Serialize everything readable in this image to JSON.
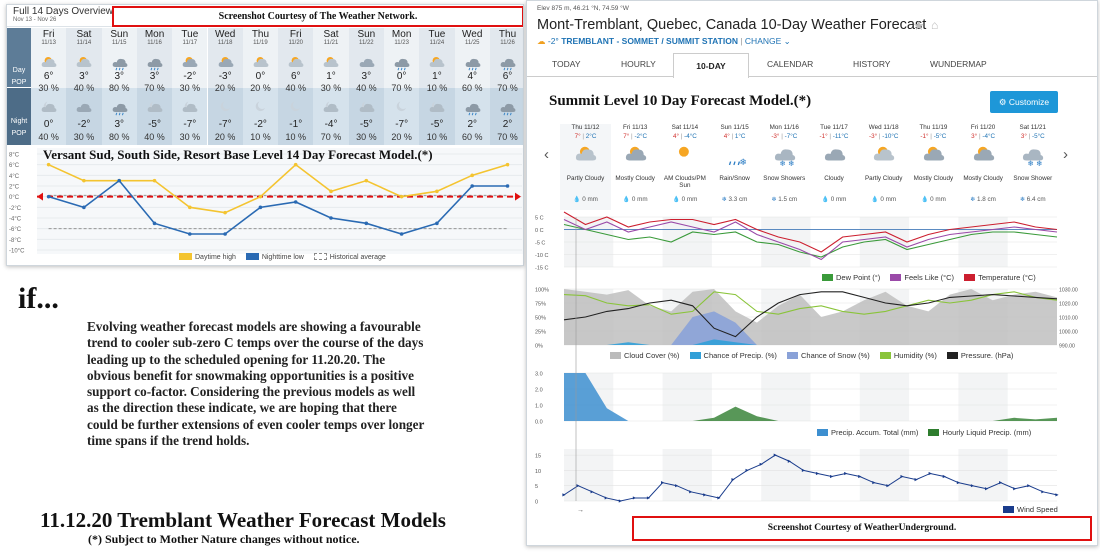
{
  "weather_network": {
    "title": "Full 14 Days Overview",
    "date_range": "Nov 13 - Nov 26",
    "courtesy": "Screenshot Courtesy of The Weather Network.",
    "heading": "Versant Sud, South Side, Resort Base Level 14 Day Forecast Model.(*)",
    "row_labels": {
      "day": "Day",
      "pop": "POP",
      "night": "Night"
    },
    "days": [
      {
        "name": "Fri",
        "date": "11/13",
        "day_temp": "6°",
        "day_pop": "30 %",
        "night_temp": "0°",
        "night_pop": "40 %"
      },
      {
        "name": "Sat",
        "date": "11/14",
        "day_temp": "3°",
        "day_pop": "40 %",
        "night_temp": "-2°",
        "night_pop": "30 %"
      },
      {
        "name": "Sun",
        "date": "11/15",
        "day_temp": "3°",
        "day_pop": "80 %",
        "night_temp": "3°",
        "night_pop": "80 %"
      },
      {
        "name": "Mon",
        "date": "11/16",
        "day_temp": "3°",
        "day_pop": "70 %",
        "night_temp": "-5°",
        "night_pop": "40 %"
      },
      {
        "name": "Tue",
        "date": "11/17",
        "day_temp": "-2°",
        "day_pop": "30 %",
        "night_temp": "-7°",
        "night_pop": "30 %"
      },
      {
        "name": "Wed",
        "date": "11/18",
        "day_temp": "-3°",
        "day_pop": "20 %",
        "night_temp": "-7°",
        "night_pop": "20 %"
      },
      {
        "name": "Thu",
        "date": "11/19",
        "day_temp": "0°",
        "day_pop": "20 %",
        "night_temp": "-2°",
        "night_pop": "10 %"
      },
      {
        "name": "Fri",
        "date": "11/20",
        "day_temp": "6°",
        "day_pop": "40 %",
        "night_temp": "-1°",
        "night_pop": "10 %"
      },
      {
        "name": "Sat",
        "date": "11/21",
        "day_temp": "1°",
        "day_pop": "30 %",
        "night_temp": "-4°",
        "night_pop": "70 %"
      },
      {
        "name": "Sun",
        "date": "11/22",
        "day_temp": "3°",
        "day_pop": "40 %",
        "night_temp": "-5°",
        "night_pop": "30 %"
      },
      {
        "name": "Mon",
        "date": "11/23",
        "day_temp": "0°",
        "day_pop": "70 %",
        "night_temp": "-7°",
        "night_pop": "20 %"
      },
      {
        "name": "Tue",
        "date": "11/24",
        "day_temp": "1°",
        "day_pop": "10 %",
        "night_temp": "-5°",
        "night_pop": "10 %"
      },
      {
        "name": "Wed",
        "date": "11/25",
        "day_temp": "4°",
        "day_pop": "60 %",
        "night_temp": "2°",
        "night_pop": "60 %"
      },
      {
        "name": "Thu",
        "date": "11/26",
        "day_temp": "6°",
        "day_pop": "70 %",
        "night_temp": "2°",
        "night_pop": "70 %"
      }
    ],
    "day_icons": [
      "sun-cloud",
      "sun-cloud",
      "cloud-rain",
      "cloud-rain",
      "cloud-sun",
      "cloud-sun",
      "sun-cloud",
      "sun-cloud",
      "sun-cloud",
      "cloud",
      "cloud-rain",
      "sun-cloud",
      "cloud-rain",
      "cloud-rain"
    ],
    "night_icons": [
      "cloud-moon",
      "cloud",
      "cloud-rain",
      "cloud-moon",
      "cloud-moon",
      "moon",
      "moon",
      "moon",
      "cloud-moon",
      "cloud-moon",
      "moon",
      "cloud-moon",
      "cloud-rain",
      "cloud-rain"
    ],
    "legend": [
      "Daytime high",
      "Nighttime low",
      "Historical average"
    ],
    "colors": {
      "side": "#5d7c97",
      "day_bg": "#eef2f5",
      "night_bg": "#d5e2ec",
      "high": "#f4c430",
      "low": "#2a6ab3",
      "hist": "#888888",
      "zero_line": "#e01010"
    }
  },
  "chart_data": [
    {
      "type": "line",
      "title": "",
      "x": [
        "11/13",
        "11/14",
        "11/15",
        "11/16",
        "11/17",
        "11/18",
        "11/19",
        "11/20",
        "11/21",
        "11/22",
        "11/23",
        "11/24",
        "11/25",
        "11/26"
      ],
      "series": [
        {
          "name": "Daytime high",
          "values": [
            6,
            3,
            3,
            3,
            -2,
            -3,
            0,
            6,
            1,
            3,
            0,
            1,
            4,
            6
          ]
        },
        {
          "name": "Nighttime low",
          "values": [
            0,
            -2,
            3,
            -5,
            -7,
            -7,
            -2,
            -1,
            -4,
            -5,
            -7,
            -5,
            2,
            2
          ]
        },
        {
          "name": "Historical average",
          "values": [
            1,
            1,
            1,
            1,
            1,
            1,
            1,
            1,
            1,
            1,
            1,
            1,
            1,
            1
          ]
        }
      ],
      "y_ticks": [
        "8°C",
        "6°C",
        "4°C",
        "2°C",
        "0°C",
        "-2°C",
        "-4°C",
        "-6°C",
        "-8°C",
        "-10°C"
      ],
      "ylim": [
        -10,
        8
      ]
    },
    {
      "type": "line",
      "title": "",
      "x_units": "days 11/12 - 11/21",
      "series": [
        {
          "name": "Dew Point (°)",
          "values": [
            2,
            0,
            -2,
            -4,
            -3,
            -5,
            -1,
            -2,
            -1,
            -5,
            -6,
            -9,
            -11,
            -7,
            -5,
            -4,
            -8,
            -6,
            -4,
            -2,
            -1,
            -1,
            -2,
            -3
          ]
        },
        {
          "name": "Feels Like (°C)",
          "values": [
            4,
            0,
            3,
            -1,
            1,
            3,
            1,
            -1,
            3,
            -2,
            -5,
            -8,
            -12,
            -5,
            -4,
            -3,
            -7,
            -4,
            -2,
            -1,
            0,
            1,
            0,
            -1
          ]
        },
        {
          "name": "Temperature (°C)",
          "values": [
            7,
            2,
            5,
            1,
            3,
            4,
            4,
            2,
            4,
            0,
            -3,
            -5,
            -9,
            -3,
            -2,
            -1,
            -5,
            -2,
            0,
            1,
            2,
            3,
            1,
            0
          ]
        }
      ],
      "y_ticks": [
        "5 C",
        "0 C",
        "-5 C",
        "-10 C",
        "-15 C"
      ],
      "ylim": [
        -15,
        5
      ]
    },
    {
      "type": "area",
      "series": [
        {
          "name": "Cloud Cover (%)",
          "values": [
            100,
            95,
            90,
            98,
            70,
            60,
            95,
            100,
            60,
            40,
            70,
            90,
            50,
            60,
            80,
            95,
            70,
            60,
            90,
            100,
            80,
            90,
            95,
            85
          ]
        },
        {
          "name": "Chance of Precip. (%)",
          "values": [
            0,
            0,
            0,
            5,
            0,
            0,
            0,
            10,
            5,
            0,
            0,
            0,
            0,
            0,
            0,
            0,
            0,
            0,
            0,
            0,
            0,
            0,
            0,
            0
          ]
        },
        {
          "name": "Chance of Snow (%)",
          "values": [
            0,
            0,
            0,
            0,
            0,
            0,
            50,
            60,
            40,
            0,
            0,
            0,
            0,
            0,
            0,
            0,
            0,
            0,
            0,
            0,
            0,
            0,
            0,
            0
          ]
        },
        {
          "name": "Humidity (%)",
          "values": [
            90,
            88,
            75,
            70,
            72,
            55,
            60,
            95,
            90,
            60,
            55,
            65,
            70,
            60,
            55,
            60,
            70,
            80,
            75,
            80,
            90,
            95,
            85,
            80
          ]
        },
        {
          "name": "Pressure. (hPa)",
          "values": [
            1008,
            1010,
            1014,
            1016,
            1020,
            1022,
            1018,
            1002,
            996,
            1010,
            1020,
            1026,
            1028,
            1028,
            1024,
            1020,
            1018,
            1020,
            1024,
            1025,
            1026,
            1025,
            1024,
            1023
          ]
        }
      ],
      "y_ticks": [
        "100%",
        "75%",
        "50%",
        "25%",
        "0%"
      ],
      "y2_ticks": [
        "1030.00",
        "1020.00",
        "1010.00",
        "1000.00",
        "990.00"
      ]
    },
    {
      "type": "area",
      "series": [
        {
          "name": "Precip. Accum. Total (mm)",
          "values": [
            3.0,
            3.0,
            0.8,
            0,
            0,
            0,
            0,
            0,
            0,
            0,
            0,
            0,
            0,
            0,
            0,
            0,
            0,
            0,
            0,
            0,
            0,
            0,
            0,
            0
          ]
        },
        {
          "name": "Hourly Liquid Precip. (mm)",
          "values": [
            0,
            0,
            0,
            0,
            0,
            0,
            0,
            0.2,
            0.9,
            0.3,
            0,
            0,
            0,
            0,
            0,
            0,
            0,
            0,
            0,
            0,
            0,
            0.2,
            0.1,
            0.2
          ]
        }
      ],
      "y_ticks": [
        "3.0",
        "2.0",
        "1.0",
        "0.0"
      ],
      "ylim": [
        0,
        3
      ]
    },
    {
      "type": "line",
      "series": [
        {
          "name": "Wind Speed",
          "values": [
            2,
            5,
            3,
            1,
            0,
            1,
            1,
            6,
            5,
            3,
            2,
            1,
            7,
            10,
            12,
            15,
            13,
            10,
            9,
            8,
            9,
            8,
            6,
            5,
            8,
            7,
            9,
            8,
            6,
            5,
            4,
            6,
            4,
            5,
            3,
            2
          ]
        }
      ],
      "y_ticks": [
        "15",
        "10",
        "5",
        "0"
      ],
      "ylim": [
        0,
        17
      ]
    }
  ],
  "text_block": {
    "if_word": "if...",
    "paragraph": "Evolving weather forecast models are showing a favourable trend to cooler sub-zero C temps over the course of the days leading up to the scheduled opening for 11.20.20. The obvious benefit for snowmaking opportunities is a positive support co-factor. Considering the previous models as well as the direction these indicate, we are hoping that there could be further extensions of even cooler temps over longer time spans if the trend holds.",
    "title": "11.12.20 Tremblant Weather Forecast Models",
    "note": "(*) Subject to Mother Nature changes without notice."
  },
  "weather_underground": {
    "elevation": "Elev 875 m, 46.21 °N, 74.59 °W",
    "title": "Mont-Tremblant, Quebec, Canada 10-Day Weather Forecast",
    "station_temp": "-2°",
    "station_name": "TREMBLANT - SOMMET / SUMMIT STATION",
    "change_label": "CHANGE",
    "tabs": [
      "TODAY",
      "HOURLY",
      "10-DAY",
      "CALENDAR",
      "HISTORY",
      "WUNDERMAP"
    ],
    "active_tab": "10-DAY",
    "heading": "Summit Level 10 Day Forecast Model.(*)",
    "customize_label": "Customize",
    "courtesy": "Screenshot Courtesy of WeatherUnderground.",
    "days": [
      {
        "header": "Thu 11/12",
        "hi": "7°",
        "lo": "2°C",
        "cond": "Partly Cloudy",
        "precip": "0 mm",
        "icon": "sun-cloud"
      },
      {
        "header": "Fri 11/13",
        "hi": "7°",
        "lo": "-2°C",
        "cond": "Mostly Cloudy",
        "precip": "0 mm",
        "icon": "cloud-sun"
      },
      {
        "header": "Sat 11/14",
        "hi": "4°",
        "lo": "-4°C",
        "cond": "AM Clouds/PM Sun",
        "precip": "0 mm",
        "icon": "sun"
      },
      {
        "header": "Sun 11/15",
        "hi": "4°",
        "lo": "1°C",
        "cond": "Rain/Snow",
        "precip": "3.3 cm",
        "icon": "rain-snow"
      },
      {
        "header": "Mon 11/16",
        "hi": "-3°",
        "lo": "-7°C",
        "cond": "Snow Showers",
        "precip": "1.5 cm",
        "icon": "snow"
      },
      {
        "header": "Tue 11/17",
        "hi": "-1°",
        "lo": "-11°C",
        "cond": "Cloudy",
        "precip": "0 mm",
        "icon": "cloud"
      },
      {
        "header": "Wed 11/18",
        "hi": "-3°",
        "lo": "-10°C",
        "cond": "Partly Cloudy",
        "precip": "0 mm",
        "icon": "sun-cloud"
      },
      {
        "header": "Thu 11/19",
        "hi": "-1°",
        "lo": "-5°C",
        "cond": "Mostly Cloudy",
        "precip": "0 mm",
        "icon": "cloud-sun"
      },
      {
        "header": "Fri 11/20",
        "hi": "3°",
        "lo": "-4°C",
        "cond": "Mostly Cloudy",
        "precip": "1.8 cm",
        "icon": "cloud-sun"
      },
      {
        "header": "Sat 11/21",
        "hi": "3°",
        "lo": "-5°C",
        "cond": "Snow Shower",
        "precip": "6.4 cm",
        "icon": "snow"
      }
    ],
    "legends": {
      "temp": [
        "Dew Point (°)",
        "Feels Like (°C)",
        "Temperature (°C)"
      ],
      "cloud": [
        "Cloud Cover (%)",
        "Chance of Precip. (%)",
        "Chance of Snow (%)",
        "Humidity (%)",
        "Pressure. (hPa)"
      ],
      "precip": [
        "Precip. Accum. Total (mm)",
        "Hourly Liquid Precip. (mm)"
      ],
      "wind": [
        "Wind Speed"
      ]
    },
    "colors": {
      "dew": "#3a9a3a",
      "feels": "#9a4aa8",
      "temp": "#cc1f2f",
      "cloud": "#bbbbbb",
      "precip": "#32a0d8",
      "snow": "#8aa2d8",
      "humidity": "#8ac43a",
      "pressure": "#222222",
      "accum": "#3d8fd0",
      "hourly": "#2e7d2e",
      "wind": "#1a3c8c",
      "blue": "#1f73b4"
    }
  }
}
